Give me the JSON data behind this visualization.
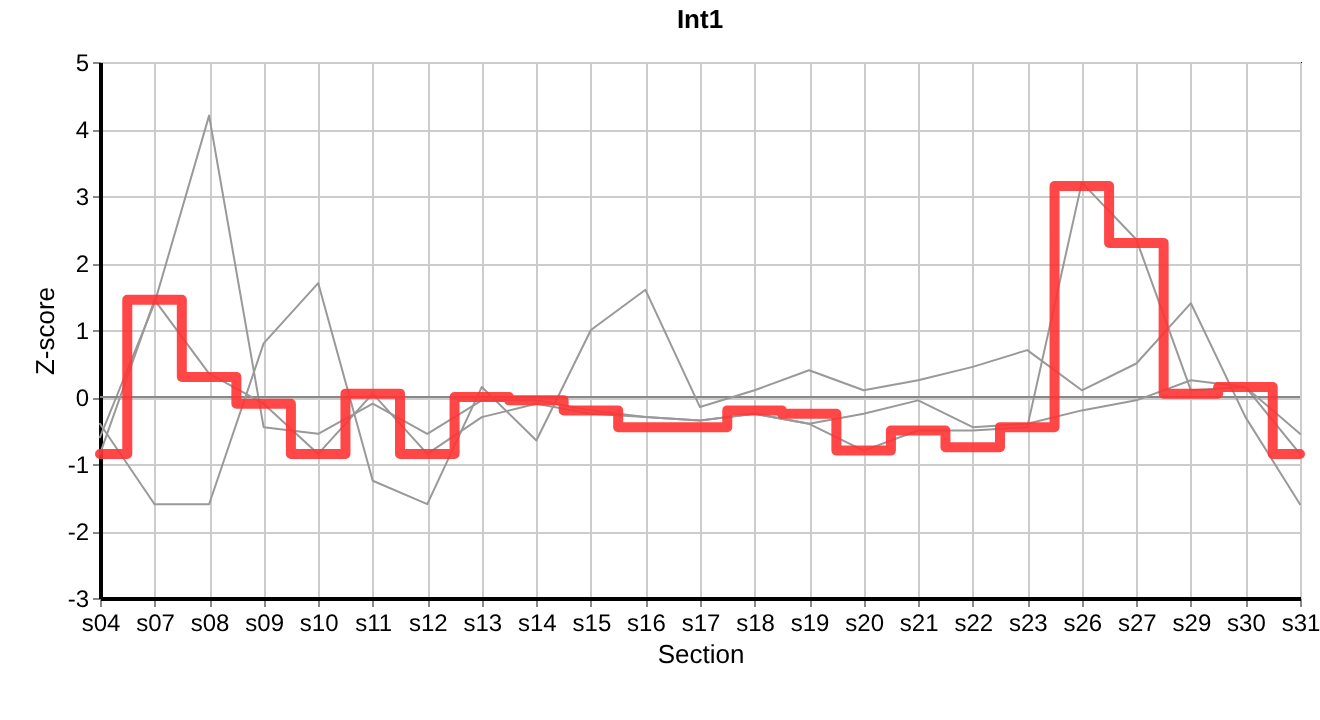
{
  "chart_data": {
    "type": "line",
    "title": "Int1",
    "xlabel": "Section",
    "ylabel": "Z-score",
    "categories": [
      "s04",
      "s07",
      "s08",
      "s09",
      "s10",
      "s11",
      "s12",
      "s13",
      "s14",
      "s15",
      "s16",
      "s17",
      "s18",
      "s19",
      "s20",
      "s21",
      "s22",
      "s23",
      "s26",
      "s27",
      "s29",
      "s30",
      "s31"
    ],
    "series": [
      {
        "color": "#999999",
        "values": [
          -0.6,
          1.4,
          4.2,
          -0.45,
          -0.55,
          -0.1,
          -0.55,
          -0.05,
          -0.05,
          -0.2,
          -0.3,
          -0.35,
          -0.25,
          -0.4,
          -0.8,
          -0.5,
          -0.5,
          -0.45,
          3.2,
          2.35,
          0.1,
          0.15,
          -0.85
        ]
      },
      {
        "color": "#999999",
        "values": [
          -0.4,
          -1.6,
          -1.6,
          0.8,
          1.7,
          -1.25,
          -1.6,
          0.15,
          -0.65,
          1.0,
          1.6,
          -0.15,
          0.1,
          0.4,
          0.1,
          0.25,
          0.45,
          0.7,
          0.1,
          0.5,
          1.4,
          -0.3,
          -1.6
        ]
      },
      {
        "color": "#999999",
        "values": [
          -0.85,
          1.45,
          0.35,
          -0.1,
          -0.85,
          0.05,
          -0.85,
          -0.3,
          -0.1,
          -0.25,
          -0.3,
          -0.35,
          -0.25,
          -0.4,
          -0.25,
          -0.05,
          -0.45,
          -0.4,
          -0.2,
          -0.05,
          0.25,
          0.15,
          -0.55
        ]
      },
      {
        "type": "step",
        "color": "#ff3333",
        "values": [
          -0.85,
          1.45,
          0.3,
          -0.1,
          -0.85,
          0.05,
          -0.85,
          0.0,
          -0.05,
          -0.2,
          -0.45,
          -0.45,
          -0.2,
          -0.25,
          -0.8,
          -0.5,
          -0.75,
          -0.45,
          3.15,
          2.3,
          0.05,
          0.15,
          -0.85
        ]
      }
    ],
    "ylim": [
      -3,
      5
    ],
    "yticks": [
      -3,
      -2,
      -1,
      0,
      1,
      2,
      3,
      4,
      5
    ],
    "grid": true,
    "ref_lines": [
      {
        "axis": "y",
        "value": 0,
        "color": "#888888"
      }
    ]
  }
}
